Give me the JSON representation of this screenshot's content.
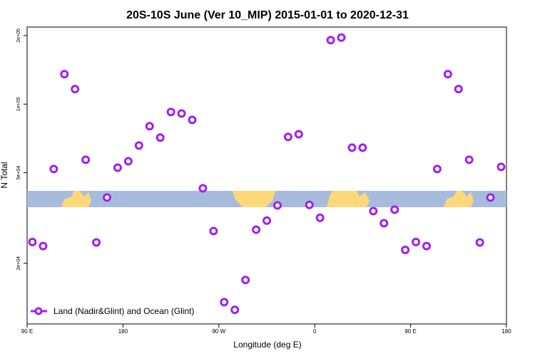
{
  "chart_data": {
    "type": "scatter",
    "title": "20S-10S June (Ver 10_MIP)   2015-01-01 to 2020-12-31",
    "x_label": "Longitude (deg E)",
    "y_label": "N Total",
    "xlim": [
      90,
      540
    ],
    "xticks": [
      {
        "value": 90,
        "label": "90 E"
      },
      180,
      {
        "value": 270,
        "label": "90 W"
      },
      {
        "value": 360,
        "label": "0"
      },
      {
        "value": 450,
        "label": "90 E"
      },
      {
        "value": 540,
        "label": "180"
      }
    ],
    "ylim": [
      10830,
      218000
    ],
    "ylog": true,
    "yticks": [
      {
        "value": 20000,
        "label": "2e+04"
      },
      {
        "value": 50000,
        "label": "5e+04"
      },
      {
        "value": 100000,
        "label": "1e+05"
      },
      {
        "value": 200000,
        "label": "2e+05"
      }
    ],
    "legend": "bottom-left",
    "series": [
      {
        "name": "Land (Nadir&Glint) and Ocean (Glint)",
        "color": "#a020f0",
        "x": [
          95,
          105,
          115,
          125,
          135,
          145,
          155,
          165,
          175,
          185,
          195,
          205,
          215,
          225,
          235,
          245,
          255,
          265,
          275,
          285,
          295,
          305,
          315,
          325,
          335,
          345,
          355,
          365,
          375,
          385,
          395,
          405,
          415,
          425,
          435,
          445,
          455,
          465,
          475,
          485,
          495,
          505,
          515,
          525,
          535
        ],
        "values": [
          24800,
          23800,
          51900,
          135400,
          116400,
          57000,
          24700,
          38900,
          52600,
          56100,
          65800,
          80000,
          71300,
          92400,
          91000,
          85300,
          42700,
          27700,
          13500,
          12500,
          16900,
          28100,
          30800,
          35900,
          71800,
          73800,
          36100,
          31700,
          191000,
          196000,
          64400,
          64400,
          33900,
          30000,
          34400,
          22900,
          24800,
          23800,
          51900,
          135400,
          116400,
          57000,
          24700,
          38900,
          53000
        ]
      }
    ]
  }
}
